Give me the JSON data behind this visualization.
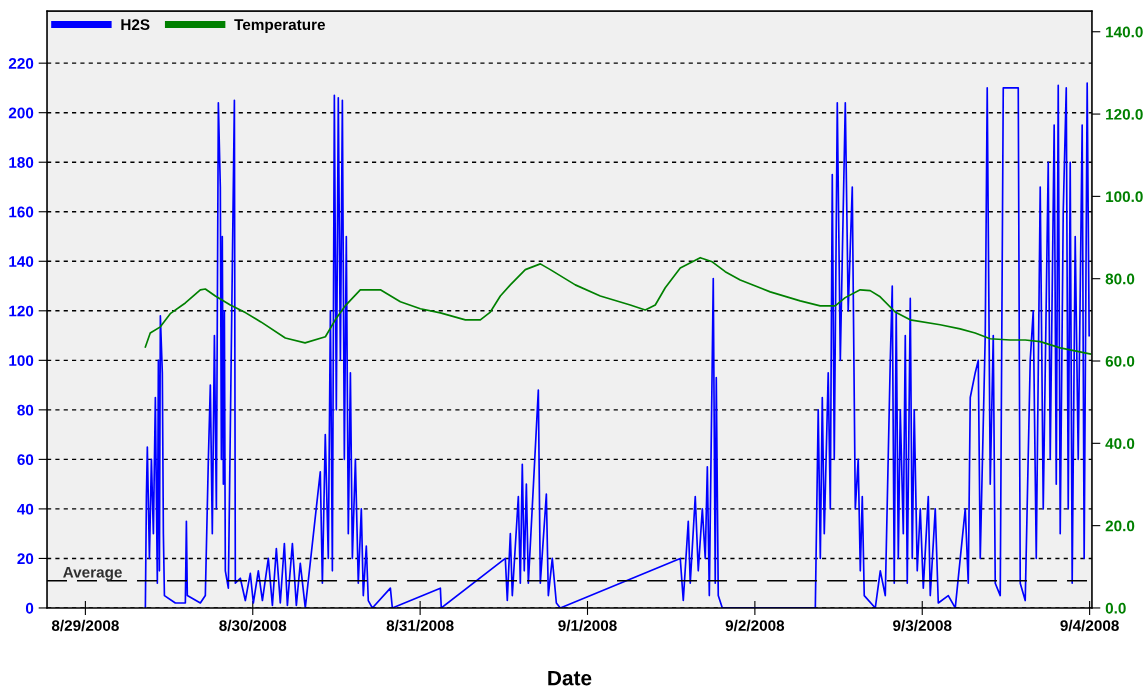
{
  "chart_data": {
    "type": "line",
    "xlabel": "Date",
    "xlim": [
      "2008-08-28T18:30",
      "2008-09-04T00:20"
    ],
    "xticks": [
      {
        "value": "2008-08-29",
        "label": "8/29/2008"
      },
      {
        "value": "2008-08-30",
        "label": "8/30/2008"
      },
      {
        "value": "2008-08-31",
        "label": "8/31/2008"
      },
      {
        "value": "2008-09-01",
        "label": "9/1/2008"
      },
      {
        "value": "2008-09-02",
        "label": "9/2/2008"
      },
      {
        "value": "2008-09-03",
        "label": "9/3/2008"
      },
      {
        "value": "2008-09-04",
        "label": "9/4/2008"
      }
    ],
    "ylim": [
      0,
      241
    ],
    "yticks": [
      0,
      20,
      40,
      60,
      80,
      100,
      120,
      140,
      160,
      180,
      200,
      220
    ],
    "y2lim": [
      0,
      145
    ],
    "y2ticks": [
      {
        "value": 0,
        "label": "0.0"
      },
      {
        "value": 20,
        "label": "20.0"
      },
      {
        "value": 40,
        "label": "40.0"
      },
      {
        "value": 60,
        "label": "60.0"
      },
      {
        "value": 80,
        "label": "80.0"
      },
      {
        "value": 100,
        "label": "100.0"
      },
      {
        "value": 120,
        "label": "120.0"
      },
      {
        "value": 140,
        "label": "140.0"
      }
    ],
    "grid": "y",
    "legend": "top left",
    "ref_lines": [
      {
        "axis": "y",
        "value": 11,
        "label": "Average",
        "color": "#000000",
        "line_style": "dashed"
      }
    ],
    "series": [
      {
        "name": "H2S",
        "color": "#0000ff",
        "x": [
          "2008-08-29T08:36",
          "2008-08-29T08:45",
          "2008-08-29T08:53",
          "2008-08-29T09:11",
          "2008-08-29T09:28",
          "2008-08-29T09:45",
          "2008-08-29T10:02",
          "2008-08-29T10:19",
          "2008-08-29T10:28",
          "2008-08-29T10:37",
          "2008-08-29T10:45",
          "2008-08-29T11:02",
          "2008-08-29T11:11",
          "2008-08-29T11:20",
          "2008-08-29T12:54",
          "2008-08-29T14:20",
          "2008-08-29T14:29",
          "2008-08-29T14:37",
          "2008-08-29T16:29",
          "2008-08-29T17:12",
          "2008-08-29T17:38",
          "2008-08-29T17:55",
          "2008-08-29T18:12",
          "2008-08-29T18:30",
          "2008-08-29T18:47",
          "2008-08-29T19:04",
          "2008-08-29T19:21",
          "2008-08-29T19:30",
          "2008-08-29T19:38",
          "2008-08-29T19:47",
          "2008-08-29T19:56",
          "2008-08-29T20:04",
          "2008-08-29T20:30",
          "2008-08-29T21:22",
          "2008-08-29T21:30",
          "2008-08-29T22:13",
          "2008-08-29T22:56",
          "2008-08-29T23:39",
          "2008-08-30T00:05",
          "2008-08-30T00:48",
          "2008-08-30T01:23",
          "2008-08-30T02:14",
          "2008-08-30T02:49",
          "2008-08-30T03:23",
          "2008-08-30T03:57",
          "2008-08-30T04:32",
          "2008-08-30T04:58",
          "2008-08-30T05:41",
          "2008-08-30T06:15",
          "2008-08-30T06:49",
          "2008-08-30T07:32",
          "2008-08-30T09:41",
          "2008-08-30T09:59",
          "2008-08-30T10:24",
          "2008-08-30T10:50",
          "2008-08-30T11:08",
          "2008-08-30T11:25",
          "2008-08-30T11:42",
          "2008-08-30T11:59",
          "2008-08-30T12:16",
          "2008-08-30T12:34",
          "2008-08-30T12:51",
          "2008-08-30T13:08",
          "2008-08-30T13:25",
          "2008-08-30T13:42",
          "2008-08-30T14:00",
          "2008-08-30T14:17",
          "2008-08-30T14:43",
          "2008-08-30T15:08",
          "2008-08-30T15:34",
          "2008-08-30T15:51",
          "2008-08-30T16:17",
          "2008-08-30T16:34",
          "2008-08-30T17:09",
          "2008-08-30T19:44",
          "2008-08-30T20:01",
          "2008-08-31T02:54",
          "2008-08-31T03:02",
          "2008-08-31T12:13",
          "2008-08-31T12:30",
          "2008-08-31T12:56",
          "2008-08-31T13:13",
          "2008-08-31T14:05",
          "2008-08-31T14:22",
          "2008-08-31T14:39",
          "2008-08-31T14:56",
          "2008-08-31T15:14",
          "2008-08-31T15:31",
          "2008-08-31T16:57",
          "2008-08-31T17:14",
          "2008-08-31T18:06",
          "2008-08-31T18:23",
          "2008-08-31T18:57",
          "2008-08-31T19:32",
          "2008-08-31T20:06",
          "2008-09-01T13:18",
          "2008-09-01T13:44",
          "2008-09-01T14:27",
          "2008-09-01T14:44",
          "2008-09-01T15:27",
          "2008-09-01T15:53",
          "2008-09-01T16:28",
          "2008-09-01T16:53",
          "2008-09-01T17:11",
          "2008-09-01T17:28",
          "2008-09-01T18:02",
          "2008-09-01T18:19",
          "2008-09-01T18:28",
          "2008-09-01T18:45",
          "2008-09-01T19:20",
          "2008-09-02T08:40",
          "2008-09-02T09:05",
          "2008-09-02T09:23",
          "2008-09-02T09:40",
          "2008-09-02T09:57",
          "2008-09-02T10:31",
          "2008-09-02T10:49",
          "2008-09-02T11:06",
          "2008-09-02T11:23",
          "2008-09-02T11:49",
          "2008-09-02T12:15",
          "2008-09-02T12:58",
          "2008-09-02T13:23",
          "2008-09-02T13:58",
          "2008-09-02T14:24",
          "2008-09-02T14:49",
          "2008-09-02T15:07",
          "2008-09-02T15:24",
          "2008-09-02T15:41",
          "2008-09-02T17:16",
          "2008-09-02T17:59",
          "2008-09-02T18:42",
          "2008-09-02T19:25",
          "2008-09-02T19:42",
          "2008-09-02T19:59",
          "2008-09-02T20:16",
          "2008-09-02T20:34",
          "2008-09-02T20:51",
          "2008-09-02T21:17",
          "2008-09-02T21:34",
          "2008-09-02T21:51",
          "2008-09-02T22:17",
          "2008-09-02T22:34",
          "2008-09-02T22:51",
          "2008-09-02T23:17",
          "2008-09-02T23:43",
          "2008-09-03T00:09",
          "2008-09-03T00:52",
          "2008-09-03T01:09",
          "2008-09-03T01:52",
          "2008-09-03T02:18",
          "2008-09-03T03:44",
          "2008-09-03T04:44",
          "2008-09-03T06:10",
          "2008-09-03T06:36",
          "2008-09-03T06:53",
          "2008-09-03T07:36",
          "2008-09-03T08:02",
          "2008-09-03T08:19",
          "2008-09-03T09:02",
          "2008-09-03T09:19",
          "2008-09-03T09:45",
          "2008-09-03T10:11",
          "2008-09-03T10:28",
          "2008-09-03T11:11",
          "2008-09-03T11:37",
          "2008-09-03T13:46",
          "2008-09-03T14:03",
          "2008-09-03T14:46",
          "2008-09-03T15:29",
          "2008-09-03T15:55",
          "2008-09-03T16:21",
          "2008-09-03T16:55",
          "2008-09-03T17:21",
          "2008-09-03T18:04",
          "2008-09-03T18:21",
          "2008-09-03T18:55",
          "2008-09-03T19:13",
          "2008-09-03T19:30",
          "2008-09-03T19:47",
          "2008-09-03T20:13",
          "2008-09-03T20:39",
          "2008-09-03T20:56",
          "2008-09-03T21:13",
          "2008-09-03T21:30",
          "2008-09-03T21:56",
          "2008-09-03T22:22",
          "2008-09-03T22:56",
          "2008-09-03T23:13",
          "2008-09-03T23:39",
          "2008-09-03T23:56"
        ],
        "values": [
          0,
          45,
          65,
          20,
          60,
          30,
          85,
          10,
          100,
          15,
          118,
          95,
          30,
          5,
          2,
          2,
          35,
          5,
          2,
          5,
          60,
          90,
          30,
          110,
          40,
          204,
          170,
          60,
          150,
          50,
          120,
          15,
          8,
          205,
          10,
          12,
          3,
          14,
          2,
          15,
          3,
          20,
          1,
          24,
          2,
          26,
          1,
          26,
          1,
          18,
          0,
          55,
          10,
          70,
          20,
          120,
          15,
          207,
          80,
          206,
          100,
          205,
          60,
          150,
          30,
          95,
          20,
          60,
          10,
          40,
          5,
          25,
          3,
          0,
          8,
          0,
          8,
          0,
          20,
          3,
          30,
          5,
          45,
          10,
          58,
          15,
          50,
          10,
          88,
          10,
          46,
          5,
          20,
          2,
          0,
          20,
          3,
          35,
          10,
          45,
          15,
          40,
          20,
          57,
          5,
          133,
          10,
          93,
          5,
          0,
          0,
          80,
          20,
          85,
          30,
          95,
          40,
          175,
          60,
          204,
          100,
          204,
          120,
          170,
          40,
          60,
          15,
          45,
          5,
          0,
          15,
          5,
          100,
          130,
          10,
          120,
          20,
          80,
          30,
          110,
          10,
          125,
          20,
          80,
          15,
          40,
          8,
          45,
          5,
          40,
          2,
          5,
          0,
          40,
          10,
          85,
          95,
          100,
          20,
          110,
          210,
          50,
          110,
          10,
          5,
          210,
          210,
          10,
          3,
          100,
          120,
          20,
          170,
          40,
          180,
          60,
          195,
          50,
          211,
          30,
          160,
          210,
          40,
          180,
          10,
          150,
          60,
          195,
          20,
          212,
          110
        ]
      },
      {
        "name": "Temperature",
        "color": "#008000",
        "axis": "y2",
        "x": [
          "2008-08-29T08:36",
          "2008-08-29T09:18",
          "2008-08-29T10:45",
          "2008-08-29T12:10",
          "2008-08-29T14:20",
          "2008-08-29T16:29",
          "2008-08-29T17:12",
          "2008-08-29T18:38",
          "2008-08-29T20:47",
          "2008-08-29T23:00",
          "2008-08-30T01:10",
          "2008-08-30T04:40",
          "2008-08-30T07:30",
          "2008-08-30T10:25",
          "2008-08-30T11:50",
          "2008-08-30T13:15",
          "2008-08-30T15:25",
          "2008-08-30T18:18",
          "2008-08-30T21:10",
          "2008-08-31T00:02",
          "2008-08-31T02:54",
          "2008-08-31T06:29",
          "2008-08-31T08:38",
          "2008-08-31T10:04",
          "2008-08-31T11:30",
          "2008-08-31T12:56",
          "2008-08-31T15:05",
          "2008-08-31T17:14",
          "2008-08-31T18:40",
          "2008-08-31T22:15",
          "2008-09-01T01:50",
          "2008-09-01T06:08",
          "2008-09-01T08:17",
          "2008-09-01T09:43",
          "2008-09-01T11:09",
          "2008-09-01T13:18",
          "2008-09-01T16:10",
          "2008-09-01T17:53",
          "2008-09-01T19:45",
          "2008-09-01T21:54",
          "2008-09-02T02:12",
          "2008-09-02T06:30",
          "2008-09-02T09:22",
          "2008-09-02T11:31",
          "2008-09-02T12:57",
          "2008-09-02T15:06",
          "2008-09-02T16:32",
          "2008-09-02T17:58",
          "2008-09-02T20:07",
          "2008-09-02T22:16",
          "2008-09-03T02:34",
          "2008-09-03T05:26",
          "2008-09-03T07:35",
          "2008-09-03T09:44",
          "2008-09-03T12:36",
          "2008-09-03T14:46",
          "2008-09-03T16:55",
          "2008-09-03T19:47",
          "2008-09-04T00:05"
        ],
        "values": [
          63.4,
          66.8,
          68.3,
          71.5,
          74.1,
          77.3,
          77.5,
          75.8,
          73.6,
          71.7,
          69.5,
          65.6,
          64.4,
          65.9,
          70.0,
          73.4,
          77.3,
          77.3,
          74.4,
          72.7,
          71.7,
          70.0,
          70.0,
          71.9,
          75.8,
          78.5,
          82.2,
          83.6,
          82.2,
          78.5,
          75.8,
          73.6,
          72.4,
          73.6,
          77.8,
          82.6,
          85.1,
          84.1,
          81.7,
          79.7,
          76.8,
          74.6,
          73.4,
          73.4,
          75.4,
          77.3,
          77.1,
          75.6,
          71.9,
          70.0,
          68.8,
          67.8,
          66.8,
          65.4,
          65.1,
          65.1,
          64.7,
          63.2,
          61.7
        ]
      }
    ]
  }
}
